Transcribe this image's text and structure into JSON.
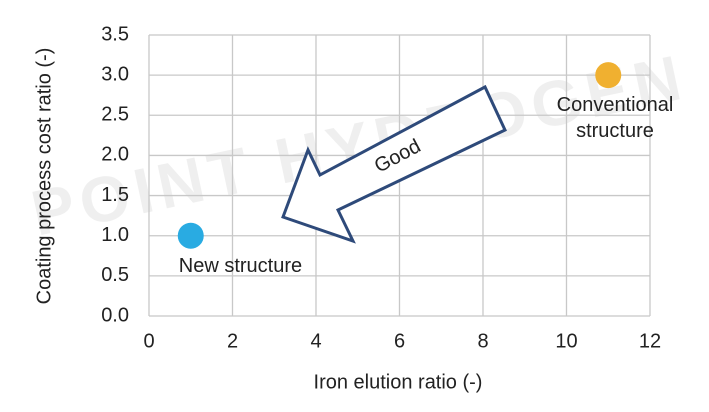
{
  "chart_data": {
    "type": "scatter",
    "watermark": "POINT HYDROGEN",
    "x_label": "Iron elution ratio (-)",
    "y_label": "Coating process cost ratio (-)",
    "annotation": "Good",
    "series": [
      {
        "name": "New structure",
        "color": "#29abe2",
        "x": [
          1
        ],
        "values": [
          1
        ]
      },
      {
        "name": "Conventional structure",
        "color": "#f0b030",
        "x": [
          11
        ],
        "values": [
          3
        ]
      }
    ],
    "xlim": [
      0,
      12
    ],
    "xticks": [
      0,
      2,
      4,
      6,
      8,
      10,
      12
    ],
    "ylim": [
      0,
      3.5
    ],
    "yticks": [
      {
        "value": 0,
        "label": "0.0"
      },
      {
        "value": 0.5,
        "label": "0.5"
      },
      {
        "value": 1,
        "label": "1.0"
      },
      {
        "value": 1.5,
        "label": "1.5"
      },
      {
        "value": 2,
        "label": "2.0"
      },
      {
        "value": 2.5,
        "label": "2.5"
      },
      {
        "value": 3,
        "label": "3.0"
      },
      {
        "value": 3.5,
        "label": "3.5"
      }
    ],
    "grid": true
  }
}
